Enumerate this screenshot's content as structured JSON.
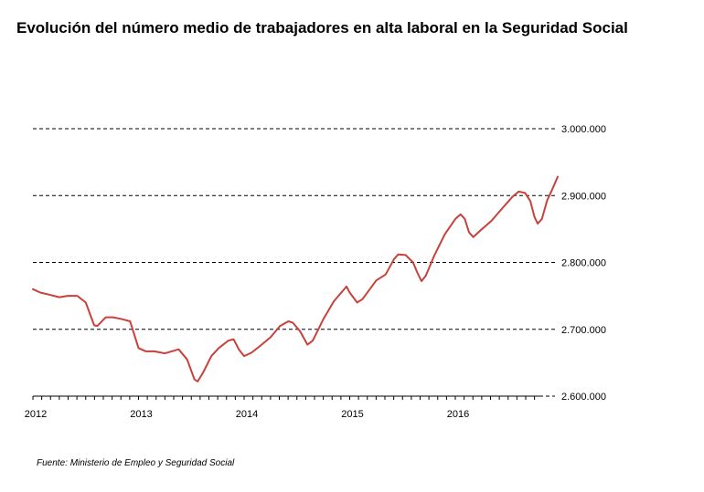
{
  "title": "Evolución del número medio de trabajadores en alta laboral en la Seguridad Social",
  "source": "Fuente: Ministerio de Empleo y Seguridad Social",
  "colors": {
    "line": "#c8413b",
    "grid": "#000000",
    "axis": "#000000"
  },
  "chart_data": {
    "type": "line",
    "title": "Evolución del número medio de trabajadores en alta laboral en la Seguridad Social",
    "xlabel": "",
    "ylabel": "",
    "ylim": [
      2600000,
      3000000
    ],
    "xlim": [
      2012.0,
      2016.92
    ],
    "grid": "horizontal dashed",
    "legend": "none",
    "y_ticks": [
      {
        "value": 3000000,
        "label": "3.000.000"
      },
      {
        "value": 2900000,
        "label": "2.900.000"
      },
      {
        "value": 2800000,
        "label": "2.800.000"
      },
      {
        "value": 2700000,
        "label": "2.700.000"
      },
      {
        "value": 2600000,
        "label": "2.600.000"
      }
    ],
    "x_ticks": [
      {
        "value": 2012,
        "label": "2012"
      },
      {
        "value": 2013,
        "label": "2013"
      },
      {
        "value": 2014,
        "label": "2014"
      },
      {
        "value": 2015,
        "label": "2015"
      },
      {
        "value": 2016,
        "label": "2016"
      }
    ],
    "series": [
      {
        "points": [
          [
            2012.0,
            2760000
          ],
          [
            2012.07,
            2755000
          ],
          [
            2012.15,
            2752000
          ],
          [
            2012.25,
            2748000
          ],
          [
            2012.33,
            2750000
          ],
          [
            2012.42,
            2750000
          ],
          [
            2012.5,
            2740000
          ],
          [
            2012.58,
            2706000
          ],
          [
            2012.61,
            2705000
          ],
          [
            2012.69,
            2718000
          ],
          [
            2012.76,
            2718000
          ],
          [
            2012.85,
            2715000
          ],
          [
            2012.92,
            2712000
          ],
          [
            2013.0,
            2672000
          ],
          [
            2013.07,
            2667000
          ],
          [
            2013.15,
            2667000
          ],
          [
            2013.25,
            2664000
          ],
          [
            2013.38,
            2670000
          ],
          [
            2013.46,
            2655000
          ],
          [
            2013.53,
            2625000
          ],
          [
            2013.56,
            2622000
          ],
          [
            2013.61,
            2635000
          ],
          [
            2013.69,
            2660000
          ],
          [
            2013.76,
            2672000
          ],
          [
            2013.85,
            2683000
          ],
          [
            2013.9,
            2685000
          ],
          [
            2013.95,
            2670000
          ],
          [
            2014.0,
            2660000
          ],
          [
            2014.07,
            2665000
          ],
          [
            2014.15,
            2675000
          ],
          [
            2014.25,
            2688000
          ],
          [
            2014.34,
            2705000
          ],
          [
            2014.42,
            2712000
          ],
          [
            2014.46,
            2710000
          ],
          [
            2014.53,
            2697000
          ],
          [
            2014.6,
            2677000
          ],
          [
            2014.65,
            2683000
          ],
          [
            2014.75,
            2715000
          ],
          [
            2014.85,
            2742000
          ],
          [
            2014.97,
            2764000
          ],
          [
            2015.0,
            2755000
          ],
          [
            2015.07,
            2740000
          ],
          [
            2015.12,
            2745000
          ],
          [
            2015.2,
            2762000
          ],
          [
            2015.25,
            2773000
          ],
          [
            2015.34,
            2782000
          ],
          [
            2015.42,
            2805000
          ],
          [
            2015.46,
            2812000
          ],
          [
            2015.53,
            2811000
          ],
          [
            2015.6,
            2800000
          ],
          [
            2015.64,
            2785000
          ],
          [
            2015.68,
            2772000
          ],
          [
            2015.72,
            2780000
          ],
          [
            2015.8,
            2810000
          ],
          [
            2015.9,
            2842000
          ],
          [
            2016.0,
            2865000
          ],
          [
            2016.05,
            2872000
          ],
          [
            2016.09,
            2865000
          ],
          [
            2016.13,
            2845000
          ],
          [
            2016.17,
            2838000
          ],
          [
            2016.24,
            2848000
          ],
          [
            2016.34,
            2862000
          ],
          [
            2016.44,
            2880000
          ],
          [
            2016.54,
            2898000
          ],
          [
            2016.6,
            2906000
          ],
          [
            2016.66,
            2904000
          ],
          [
            2016.71,
            2892000
          ],
          [
            2016.75,
            2868000
          ],
          [
            2016.78,
            2858000
          ],
          [
            2016.82,
            2865000
          ],
          [
            2016.87,
            2893000
          ],
          [
            2016.92,
            2910000
          ],
          [
            2016.97,
            2928000
          ]
        ]
      }
    ]
  }
}
